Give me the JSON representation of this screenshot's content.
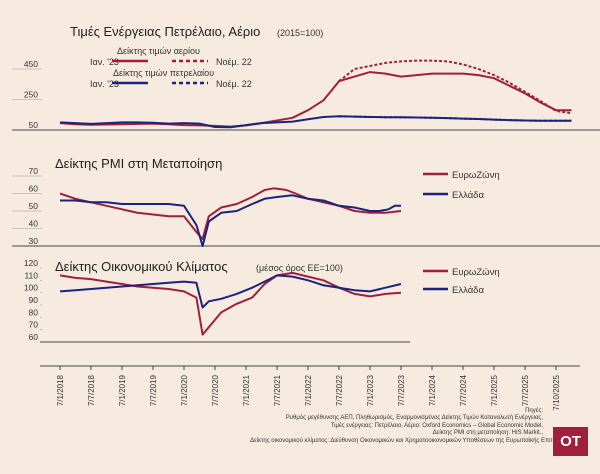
{
  "colors": {
    "red": "#a01f3c",
    "blue": "#1a237e",
    "background": "#f7ebe0",
    "axis": "#555555"
  },
  "x_tick_labels": [
    "7/1/2018",
    "7/7/2018",
    "7/1/2019",
    "7/7/2019",
    "7/1/2020",
    "7/7/2020",
    "7/1/2021",
    "7/7/2021",
    "7/1/2022",
    "7/7/2022",
    "7/1/2023",
    "7/7/2023",
    "7/1/2024",
    "7/7/2024",
    "7/1/2025",
    "7/7/2025",
    "7/10/2025"
  ],
  "logo": "OT",
  "sources": [
    "Πηγές:",
    "Ρυθμός μεγέθυνσης ΑΕΠ, Πληθωρισμός, Εναρμονισμένος Δείκτης Τιμών Καταναλωτή Ενέργειας,",
    "Τιμές ενέργειας: Πετρέλαιο, Αέριο: Oxford Economics – Global Economic Model.",
    "Δείκτης PMI στη μεταποίηση: HIS Markit.,",
    "Δείκτης οικονομικού κλίματος: Διεύθυνση Οικονομικών και Χρηματοοικονομικών Υποθέσεων της Ευρωπαϊκής Επιτροπής."
  ],
  "chart_data": [
    {
      "type": "line",
      "title": "Τιμές Ενέργειας Πετρέλαιο, Αέριο",
      "subtitle": "(2015=100)",
      "ylim": [
        50,
        450
      ],
      "yticks": [
        50,
        250,
        450
      ],
      "legend": {
        "gas_header": "Δείκτης τιμών αερίου",
        "oil_header": "Δείκτης τιμών πετρελαίου",
        "actual_label": "Ιαν. '23",
        "forecast_label": "Νοέμ. 22"
      },
      "series": [
        {
          "name": "Ιαν. '23",
          "color": "red",
          "dash": false,
          "x": [
            0,
            0.5,
            1,
            1.5,
            2,
            2.5,
            3,
            3.5,
            4,
            4.5,
            5,
            5.5,
            6,
            6.5,
            7,
            7.5,
            8,
            8.5,
            9,
            9.5,
            10,
            10.5,
            11,
            11.5,
            12,
            12.5,
            13,
            13.5,
            14,
            14.5,
            15,
            15.5,
            16,
            16.5
          ],
          "values": [
            95,
            88,
            85,
            86,
            88,
            90,
            92,
            88,
            82,
            80,
            77,
            72,
            80,
            95,
            112,
            130,
            180,
            245,
            370,
            400,
            430,
            420,
            400,
            410,
            420,
            420,
            420,
            410,
            390,
            340,
            290,
            230,
            180,
            180
          ]
        },
        {
          "name": "Νοέμ. 22",
          "color": "red",
          "dash": true,
          "x": [
            9,
            9.5,
            10,
            10.5,
            11,
            11.5,
            12,
            12.5,
            13,
            13.5,
            14,
            14.5,
            15,
            15.5,
            16,
            16.5
          ],
          "values": [
            370,
            450,
            470,
            490,
            500,
            505,
            505,
            500,
            480,
            450,
            410,
            360,
            300,
            240,
            175,
            160
          ]
        },
        {
          "name": "Ιαν. '23",
          "color": "blue",
          "dash": false,
          "x": [
            0,
            0.5,
            1,
            1.5,
            2,
            2.5,
            3,
            3.5,
            4,
            4.5,
            5,
            5.5,
            6,
            6.5,
            7,
            7.5,
            8,
            8.5,
            9,
            9.5,
            10,
            10.5,
            11,
            11.5,
            12,
            12.5,
            13,
            13.5,
            14,
            14.5,
            15,
            15.5,
            16,
            16.5
          ],
          "values": [
            100,
            95,
            90,
            95,
            100,
            100,
            98,
            92,
            95,
            92,
            70,
            68,
            82,
            95,
            100,
            105,
            120,
            135,
            140,
            138,
            135,
            134,
            133,
            132,
            130,
            128,
            125,
            122,
            118,
            115,
            112,
            110,
            110,
            110
          ]
        },
        {
          "name": "Νοέμ. 22",
          "color": "blue",
          "dash": true,
          "x": [
            9,
            9.5,
            10,
            10.5,
            11,
            11.5,
            12,
            12.5,
            13,
            13.5,
            14,
            14.5,
            15,
            15.5,
            16,
            16.5
          ],
          "values": [
            140,
            138,
            136,
            134,
            133,
            132,
            130,
            128,
            125,
            122,
            118,
            115,
            112,
            110,
            110,
            110
          ]
        }
      ]
    },
    {
      "type": "line",
      "title": "Δείκτης PMI στη Μεταποίηση",
      "ylim": [
        30,
        70
      ],
      "yticks": [
        30,
        40,
        50,
        60,
        70
      ],
      "series": [
        {
          "name": "ΕυρωΖώνη",
          "color": "red",
          "x": [
            0,
            0.5,
            1,
            1.5,
            2,
            2.5,
            3,
            3.5,
            4,
            4.4,
            4.6,
            4.8,
            5.2,
            5.7,
            6.2,
            6.6,
            6.9,
            7.3,
            7.6,
            8,
            8.5,
            9,
            9.5,
            10,
            10.5,
            11
          ],
          "values": [
            60,
            57,
            55,
            53,
            51,
            49,
            48,
            47,
            47,
            38,
            34,
            47,
            52,
            54,
            58,
            62,
            63,
            62,
            60,
            57,
            55,
            53,
            50,
            49,
            49,
            50
          ]
        },
        {
          "name": "Ελλάδα",
          "color": "blue",
          "x": [
            0,
            0.5,
            1,
            1.5,
            2,
            2.5,
            3,
            3.5,
            4,
            4.4,
            4.6,
            4.8,
            5.2,
            5.7,
            6.2,
            6.6,
            7,
            7.5,
            8,
            8.5,
            9,
            9.5,
            10,
            10.3,
            10.6,
            10.8,
            11
          ],
          "values": [
            56,
            56,
            55,
            55,
            54,
            54,
            54,
            54,
            53,
            42,
            30,
            44,
            49,
            50,
            54,
            57,
            58,
            59,
            57,
            56,
            53,
            52,
            50,
            50,
            51,
            53,
            53
          ]
        }
      ]
    },
    {
      "type": "line",
      "title": "Δείκτης Οικονομικού Κλίματος",
      "subtitle": "(μέσος όρος ΕΕ=100)",
      "ylim": [
        60,
        120
      ],
      "yticks": [
        60,
        70,
        80,
        90,
        100,
        110,
        120
      ],
      "series": [
        {
          "name": "ΕυρωΖώνη",
          "color": "red",
          "x": [
            0,
            0.5,
            1,
            1.5,
            2,
            2.5,
            3,
            3.5,
            4,
            4.4,
            4.6,
            4.8,
            5.2,
            5.7,
            6.2,
            6.6,
            7,
            7.5,
            8,
            8.5,
            9,
            9.5,
            10,
            10.5,
            11
          ],
          "values": [
            114,
            112,
            111,
            109,
            107,
            105,
            104,
            103,
            101,
            96,
            66,
            72,
            84,
            91,
            96,
            107,
            114,
            116,
            113,
            110,
            104,
            99,
            97,
            99,
            100
          ]
        },
        {
          "name": "Ελλάδα",
          "color": "blue",
          "x": [
            0,
            0.5,
            1,
            1.5,
            2,
            2.5,
            3,
            3.5,
            4,
            4.4,
            4.6,
            4.8,
            5.2,
            5.7,
            6.2,
            6.6,
            7,
            7.5,
            8,
            8.5,
            9,
            9.5,
            10,
            10.5,
            11
          ],
          "values": [
            101,
            102,
            103,
            104,
            105,
            106,
            107,
            108,
            109,
            108,
            88,
            93,
            95,
            99,
            104,
            109,
            114,
            113,
            110,
            106,
            104,
            102,
            101,
            104,
            107
          ]
        }
      ]
    }
  ]
}
